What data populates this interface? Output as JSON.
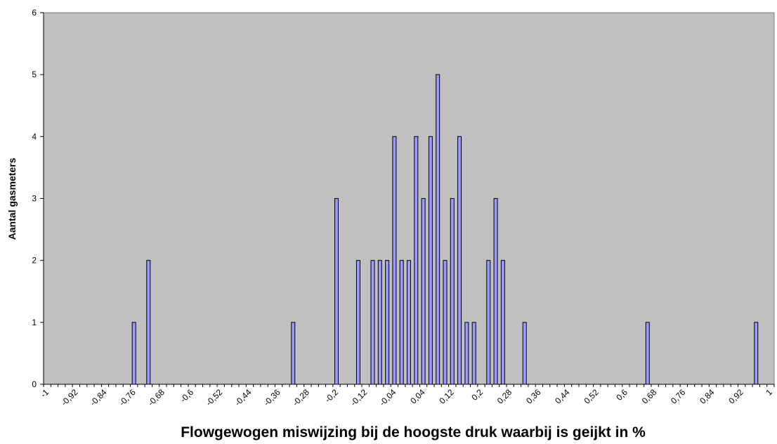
{
  "chart_data": {
    "type": "bar",
    "x_label": "Flowgewogen miswijzing bij de hoogste druk waarbij is geijkt in %",
    "y_label": "Aantal gasmeters",
    "categories": [
      "-1",
      null,
      null,
      null,
      "-0,92",
      null,
      null,
      null,
      "-0,84",
      null,
      null,
      null,
      "-0,76",
      null,
      null,
      null,
      "-0,68",
      null,
      null,
      null,
      "-0,6",
      null,
      null,
      null,
      "-0,52",
      null,
      null,
      null,
      "-0,44",
      null,
      null,
      null,
      "-0,36",
      null,
      null,
      null,
      "-0,28",
      null,
      null,
      null,
      "-0,2",
      null,
      null,
      null,
      "-0,12",
      null,
      null,
      null,
      "-0,04",
      null,
      null,
      null,
      "0,04",
      null,
      null,
      null,
      "0,12",
      null,
      null,
      null,
      "0,2",
      null,
      null,
      null,
      "0,28",
      null,
      null,
      null,
      "0,36",
      null,
      null,
      null,
      "0,44",
      null,
      null,
      null,
      "0,52",
      null,
      null,
      null,
      "0,6",
      null,
      null,
      null,
      "0,68",
      null,
      null,
      null,
      "0,76",
      null,
      null,
      null,
      "0,84",
      null,
      null,
      null,
      "0,92",
      null,
      null,
      null,
      "1"
    ],
    "values": [
      0,
      0,
      0,
      0,
      0,
      0,
      0,
      0,
      0,
      0,
      0,
      0,
      1,
      0,
      2,
      0,
      0,
      0,
      0,
      0,
      0,
      0,
      0,
      0,
      0,
      0,
      0,
      0,
      0,
      0,
      0,
      0,
      0,
      0,
      1,
      0,
      0,
      0,
      0,
      0,
      3,
      0,
      0,
      2,
      0,
      2,
      2,
      2,
      4,
      2,
      2,
      4,
      3,
      4,
      5,
      2,
      3,
      4,
      1,
      1,
      0,
      2,
      3,
      2,
      0,
      0,
      1,
      0,
      0,
      0,
      0,
      0,
      0,
      0,
      0,
      0,
      0,
      0,
      0,
      0,
      0,
      0,
      0,
      1,
      0,
      0,
      0,
      0,
      0,
      0,
      0,
      0,
      0,
      0,
      0,
      0,
      0,
      0,
      1,
      0,
      0
    ],
    "color": "#9999ff",
    "background": "#c0c0c0",
    "ylim": [
      0,
      6
    ],
    "yticks": [
      0,
      1,
      2,
      3,
      4,
      5,
      6
    ]
  }
}
